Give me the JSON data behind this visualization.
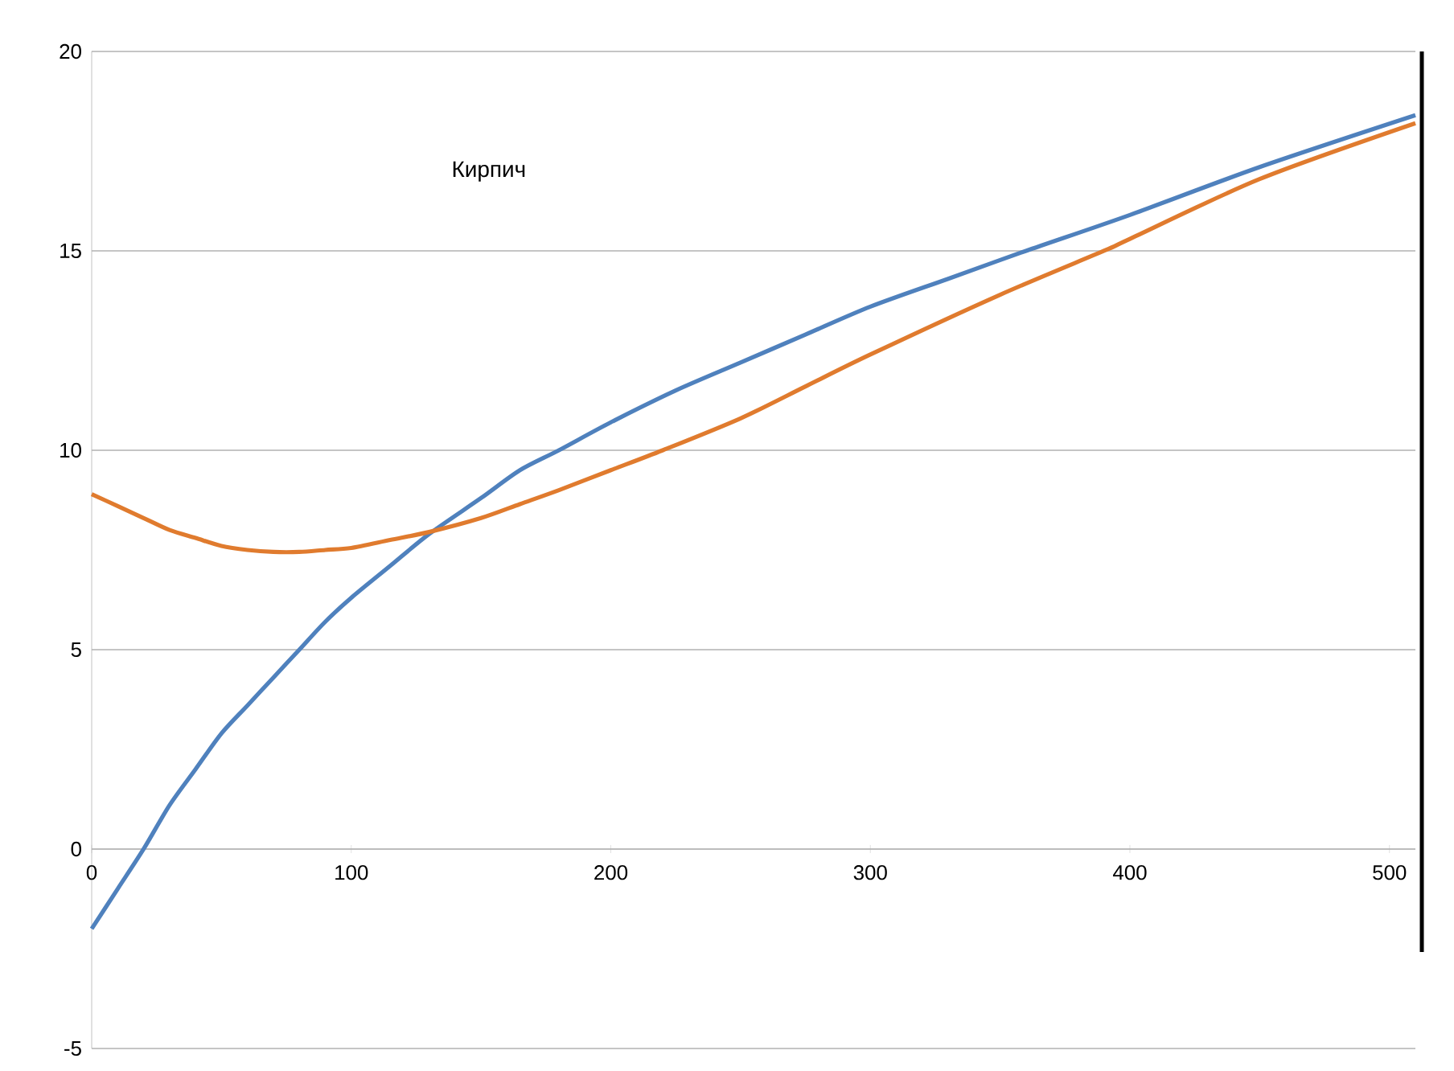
{
  "chart_data": {
    "type": "line",
    "title": "Кирпич",
    "xlim": [
      0,
      510
    ],
    "ylim": [
      -5,
      20
    ],
    "xticks": [
      0,
      100,
      200,
      300,
      400,
      500
    ],
    "yticks": [
      -5,
      0,
      5,
      10,
      15,
      20
    ],
    "grid": "y",
    "marker": "none",
    "line_style": "solid",
    "series": [
      {
        "color": "#4f81bd",
        "x": [
          0,
          10,
          20,
          30,
          40,
          50,
          60,
          70,
          80,
          90,
          100,
          115,
          130,
          150,
          165,
          180,
          200,
          225,
          250,
          275,
          300,
          330,
          360,
          400,
          450,
          510
        ],
        "values": [
          -2,
          -1,
          0,
          1.1,
          2,
          2.9,
          3.6,
          4.3,
          5,
          5.7,
          6.3,
          7.1,
          7.9,
          8.8,
          9.5,
          10,
          10.7,
          11.5,
          12.2,
          12.9,
          13.6,
          14.3,
          15,
          15.9,
          17.1,
          18.4
        ]
      },
      {
        "color": "#e07b2e",
        "x": [
          0,
          10,
          20,
          30,
          40,
          50,
          60,
          70,
          80,
          90,
          100,
          115,
          130,
          150,
          165,
          180,
          200,
          220,
          250,
          275,
          300,
          350,
          390,
          400,
          450,
          510
        ],
        "values": [
          8.9,
          8.6,
          8.3,
          8,
          7.8,
          7.6,
          7.5,
          7.45,
          7.45,
          7.5,
          7.55,
          7.75,
          7.95,
          8.3,
          8.65,
          9,
          9.5,
          10,
          10.8,
          11.6,
          12.4,
          13.9,
          15,
          15.3,
          16.8,
          18.2
        ]
      }
    ]
  }
}
